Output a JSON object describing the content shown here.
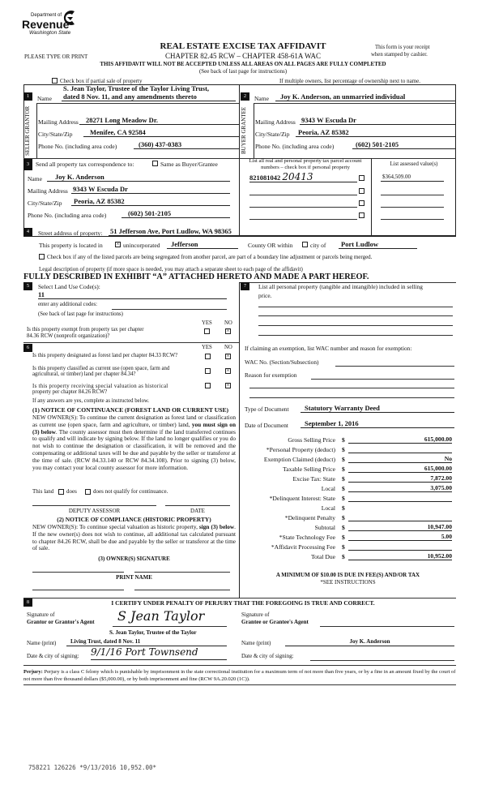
{
  "header": {
    "logo_line1": "Department of",
    "logo_line2": "Revenue",
    "logo_line3": "Washington State",
    "title": "REAL ESTATE EXCISE TAX AFFIDAVIT",
    "chapter": "CHAPTER 82.45 RCW – CHAPTER 458-61A WAC",
    "please": "PLEASE TYPE OR PRINT",
    "receipt1": "This form is your receipt",
    "receipt2": "when stamped by cashier.",
    "warning": "THIS AFFIDAVIT WILL NOT BE ACCEPTED UNLESS ALL AREAS ON ALL PAGES ARE FULLY COMPLETED",
    "see_back": "(See back of last page for instructions)",
    "partial_sale": "Check box if partial sale of property",
    "multiple_owners": "If multiple owners, list percentage of ownership next to name."
  },
  "seller": {
    "num": "1",
    "side_label": "SELLER GRANTOR",
    "name_label": "Name",
    "name1": "S. Jean Taylor, Trustee of the Taylor Living Trust,",
    "name2": "dated 8 Nov. 11, and any amendments thereto",
    "mail_label": "Mailing Address",
    "mail": "28271 Long Meadow Dr.",
    "city_label": "City/State/Zip",
    "city": "Menifee, CA 92584",
    "phone_label": "Phone No. (including area code)",
    "phone": "(360) 437-0383"
  },
  "buyer": {
    "num": "2",
    "side_label": "BUYER GRANTEE",
    "name_label": "Name",
    "name": "Joy K. Anderson, an unmarried individual",
    "mail_label": "Mailing Address",
    "mail": "9343 W Escuda Dr",
    "city_label": "City/State/Zip",
    "city": "Peoria, AZ 85382",
    "phone_label": "Phone No. (including area code)",
    "phone": "(602) 501-2105"
  },
  "correspondence": {
    "num": "3",
    "label": "Send all property tax correspondence to:",
    "same_label": "Same as Buyer/Grantee",
    "name_label": "Name",
    "name": "Joy K. Anderson",
    "mail_label": "Mailing Address",
    "mail": "9343 W Escuda Dr",
    "city_label": "City/State/Zip",
    "city": "Peoria, AZ 85382",
    "phone_label": "Phone No. (including area code)",
    "phone": "(602) 501-2105"
  },
  "parcels": {
    "header1": "List all real and personal property tax parcel account",
    "header2": "numbers – check box if personal property",
    "assessed_header": "List assessed value(s)",
    "parcel": "821081042",
    "handwritten": "20413",
    "assessed": "$364,509.00"
  },
  "property": {
    "num": "4",
    "street_label": "Street address of property:",
    "street": "51 Jefferson Ave, Port Ludlow, WA  98365",
    "located_label": "This property is located in",
    "unincorporated_label": "unincorporated",
    "county": "Jefferson",
    "county_label": "County OR  within",
    "city_of_label": "city of",
    "city": "Port Ludlow",
    "segregated_label": "Check box if any of the listed parcels are being segregated from another parcel, are part of a boundary line adjustment or parcels being merged.",
    "legal_label": "Legal description of property (if more space is needed, you may attach a separate sheet to each page of the affidavit)",
    "legal": "FULLY DESCRIBED IN EXHIBIT “A” ATTACHED HERETO AND MADE A PART HEREOF."
  },
  "land_use": {
    "num": "5",
    "label": "Select Land Use Code(s):",
    "code": "11",
    "additional_label": "enter any additional codes:",
    "see_back": "(See back of last page for instructions)",
    "yes": "YES",
    "no": "NO",
    "exempt_q1": "Is this property exempt from property tax per chapter",
    "exempt_q2": "84.36 RCW (nonprofit organization)?"
  },
  "section6": {
    "num": "6",
    "yes": "YES",
    "no": "NO",
    "q1": "Is this property designated as forest land per chapter 84.33 RCW?",
    "q2a": "Is this property classified as current use (open space, farm and",
    "q2b": "agricultural, or timber) land per chapter 84.34?",
    "q3a": "Is this property receiving special valuation as historical",
    "q3b": "property per chapter 84.26 RCW?",
    "if_yes": "If any answers are yes, complete as instructed below.",
    "notice1_title": "(1) NOTICE OF CONTINUANCE (FOREST LAND OR CURRENT USE)",
    "notice1_a": "NEW OWNER(S): To continue the current designation as forest land or classification as current use (open space, farm and agriculture, or timber) land, ",
    "notice1_bold": "you must sign on (3) below",
    "notice1_b": ". The county assessor must then determine if the land transferred continues to qualify and will indicate by signing below. If the land no longer qualifies or you do not wish to continue the designation or classification, it will be removed and the compensating or additional taxes will be due and payable by the seller or transferor at the time of sale. (RCW 84.33.140 or RCW 84.34.108). Prior to signing (3) below, you may contact your local county assessor for more information.",
    "this_land": "This land",
    "does": "does",
    "does_not": "does not qualify for continuance.",
    "deputy": "DEPUTY ASSESSOR",
    "date": "DATE",
    "notice2_title": "(2) NOTICE OF COMPLIANCE (HISTORIC PROPERTY)",
    "notice2_a": "NEW OWNER(S): To continue special valuation as historic property, ",
    "notice2_bold": "sign (3) below",
    "notice2_b": ". If the new owner(s) does not wish to continue, all additional tax calculated pursuant to chapter 84.26 RCW, shall be due and payable by the seller or transferor at the time of sale.",
    "owner_sig": "(3)  OWNER(S) SIGNATURE",
    "print_name": "PRINT NAME"
  },
  "section7": {
    "num": "7",
    "label1": "List all personal property (tangible and intangible) included in selling",
    "label2": "price.",
    "exemption_label": "If claiming an exemption, list WAC number and reason for exemption:",
    "wac_label": "WAC No. (Section/Subsection)",
    "reason_label": "Reason for exemption",
    "doc_type_label": "Type of Document",
    "doc_type": "Statutory Warranty Deed",
    "doc_date_label": "Date of Document",
    "doc_date": "September 1, 2016",
    "tax_rows": [
      {
        "label": "Gross Selling Price",
        "value": "615,000.00"
      },
      {
        "label": "*Personal Property (deduct)",
        "value": ""
      },
      {
        "label": "Exemption Claimed (deduct)",
        "value": "No"
      },
      {
        "label": "Taxable Selling Price",
        "value": "615,000.00"
      },
      {
        "label": "Excise Tax:  State",
        "value": "7,872.00"
      },
      {
        "label": "Local",
        "value": "3,075.00"
      },
      {
        "label": "*Delinquent Interest:  State",
        "value": ""
      },
      {
        "label": "Local",
        "value": ""
      },
      {
        "label": "*Delinquent Penalty",
        "value": ""
      },
      {
        "label": "Subtotal",
        "value": "10,947.00"
      },
      {
        "label": "*State Technology Fee",
        "value": "5.00"
      },
      {
        "label": "*Affidavit Processing Fee",
        "value": ""
      },
      {
        "label": "Total Due",
        "value": "10,952.00"
      }
    ],
    "dollar": "$",
    "minimum": "A MINIMUM OF $10.00 IS DUE IN FEE(S) AND/OR TAX",
    "see_instructions": "*SEE INSTRUCTIONS"
  },
  "section8": {
    "num": "8",
    "certify": "I CERTIFY UNDER PENALTY OF PERJURY THAT THE FOREGOING IS TRUE AND CORRECT.",
    "sig_of": "Signature of",
    "grantor_agent": "Grantor or Grantor's Agent",
    "grantor_signature": "S Jean Taylor",
    "grantor_name_line1": "S. Jean Taylor, Trustee of the Taylor",
    "grantor_name_line2": "Living Trust, dated 8 Nov. 11",
    "grantee_agent": "Grantee or Grantee's Agent",
    "name_print_label": "Name (print)",
    "grantee_name": "Joy K. Anderson",
    "date_city_label": "Date & city of signing:",
    "grantor_date_city": "9/1/16 Port Townsend",
    "perjury_label": "Perjury:",
    "perjury_text": "Perjury is a class C felony which is punishable by imprisonment in the state correctional institution for a maximum term of not more than five years, or by a fine in an amount fixed by the court of not more than five thousand dollars ($5,000.00), or by both imprisonment and fine (RCW 9A.20.020 (1C))."
  },
  "stamp": "758221 126226 *9/13/2016 10,952.00*"
}
